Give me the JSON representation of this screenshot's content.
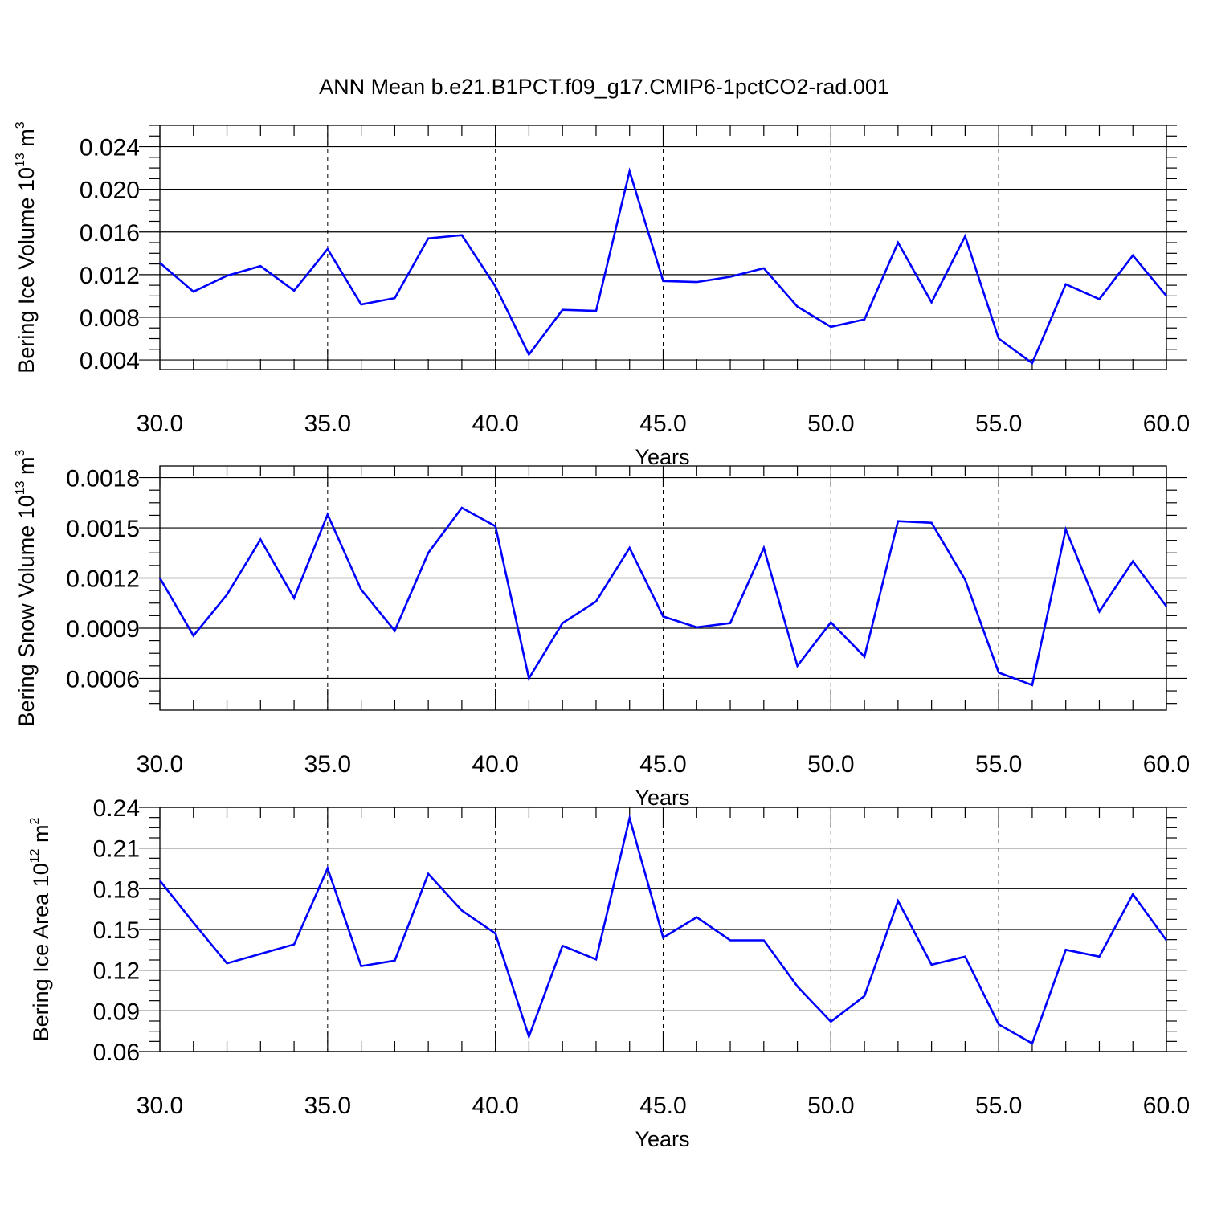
{
  "title": "ANN Mean b.e21.B1PCT.f09_g17.CMIP6-1pctCO2-rad.001",
  "line_color": "#0000ff",
  "chart_data": [
    {
      "type": "line",
      "xlabel": "Years",
      "ylabel": "Bering Ice Volume 10",
      "ylabel_exp": "13",
      "ylabel_unit": "m",
      "ylabel_unit_exp": "3",
      "xlim": [
        30,
        60
      ],
      "ylim": [
        0.0031,
        0.026
      ],
      "x_ticks": [
        30,
        35,
        40,
        45,
        50,
        55,
        60
      ],
      "x_tick_labels": [
        "30.0",
        "35.0",
        "40.0",
        "45.0",
        "50.0",
        "55.0",
        "60.0"
      ],
      "y_ticks": [
        0.004,
        0.008,
        0.012,
        0.016,
        0.02,
        0.024
      ],
      "y_tick_labels": [
        "0.004",
        "0.008",
        "0.012",
        "0.016",
        "0.020",
        "0.024"
      ],
      "grid": "vertical dashed at major x ticks",
      "x": [
        30,
        31,
        32,
        33,
        34,
        35,
        36,
        37,
        38,
        39,
        40,
        41,
        42,
        43,
        44,
        45,
        46,
        47,
        48,
        49,
        50,
        51,
        52,
        53,
        54,
        55,
        56,
        57,
        58,
        59,
        60
      ],
      "values": [
        0.0131,
        0.0104,
        0.0119,
        0.0128,
        0.0105,
        0.0144,
        0.0092,
        0.0098,
        0.0154,
        0.0157,
        0.0109,
        0.0045,
        0.0087,
        0.0086,
        0.0217,
        0.0114,
        0.0113,
        0.0118,
        0.0126,
        0.009,
        0.0071,
        0.0078,
        0.015,
        0.0094,
        0.0156,
        0.006,
        0.0037,
        0.0111,
        0.0097,
        0.0138,
        0.01
      ]
    },
    {
      "type": "line",
      "xlabel": "Years",
      "ylabel": "Bering Snow Volume 10",
      "ylabel_exp": "13",
      "ylabel_unit": "m",
      "ylabel_unit_exp": "3",
      "xlim": [
        30,
        60
      ],
      "ylim": [
        0.00041,
        0.00187
      ],
      "x_ticks": [
        30,
        35,
        40,
        45,
        50,
        55,
        60
      ],
      "x_tick_labels": [
        "30.0",
        "35.0",
        "40.0",
        "45.0",
        "50.0",
        "55.0",
        "60.0"
      ],
      "y_ticks": [
        0.0006,
        0.0009,
        0.0012,
        0.0015,
        0.0018
      ],
      "y_tick_labels": [
        "0.0006",
        "0.0009",
        "0.0012",
        "0.0015",
        "0.0018"
      ],
      "grid": "vertical dashed at major x ticks",
      "x": [
        30,
        31,
        32,
        33,
        34,
        35,
        36,
        37,
        38,
        39,
        40,
        41,
        42,
        43,
        44,
        45,
        46,
        47,
        48,
        49,
        50,
        51,
        52,
        53,
        54,
        55,
        56,
        57,
        58,
        59,
        60
      ],
      "values": [
        0.0012,
        0.000855,
        0.0011,
        0.00143,
        0.00108,
        0.00158,
        0.00113,
        0.000885,
        0.00135,
        0.00162,
        0.00151,
        0.0006,
        0.00093,
        0.00106,
        0.00138,
        0.00097,
        0.000905,
        0.00093,
        0.00138,
        0.000675,
        0.000935,
        0.00073,
        0.00154,
        0.00153,
        0.00119,
        0.000635,
        0.00056,
        0.00149,
        0.001,
        0.0013,
        0.00103
      ]
    },
    {
      "type": "line",
      "xlabel": "Years",
      "ylabel": "Bering Ice Area 10",
      "ylabel_exp": "12",
      "ylabel_unit": "m",
      "ylabel_unit_exp": "2",
      "xlim": [
        30,
        60
      ],
      "ylim": [
        0.06,
        0.24
      ],
      "x_ticks": [
        30,
        35,
        40,
        45,
        50,
        55,
        60
      ],
      "x_tick_labels": [
        "30.0",
        "35.0",
        "40.0",
        "45.0",
        "50.0",
        "55.0",
        "60.0"
      ],
      "y_ticks": [
        0.06,
        0.09,
        0.12,
        0.15,
        0.18,
        0.21,
        0.24
      ],
      "y_tick_labels": [
        "0.06",
        "0.09",
        "0.12",
        "0.15",
        "0.18",
        "0.21",
        "0.24"
      ],
      "grid": "vertical dashed at major x ticks",
      "x": [
        30,
        31,
        32,
        33,
        34,
        35,
        36,
        37,
        38,
        39,
        40,
        41,
        42,
        43,
        44,
        45,
        46,
        47,
        48,
        49,
        50,
        51,
        52,
        53,
        54,
        55,
        56,
        57,
        58,
        59,
        60
      ],
      "values": [
        0.186,
        0.155,
        0.125,
        0.132,
        0.139,
        0.195,
        0.123,
        0.127,
        0.191,
        0.164,
        0.147,
        0.071,
        0.138,
        0.128,
        0.232,
        0.144,
        0.159,
        0.142,
        0.142,
        0.108,
        0.082,
        0.101,
        0.171,
        0.124,
        0.13,
        0.08,
        0.066,
        0.135,
        0.13,
        0.176,
        0.142
      ]
    }
  ]
}
